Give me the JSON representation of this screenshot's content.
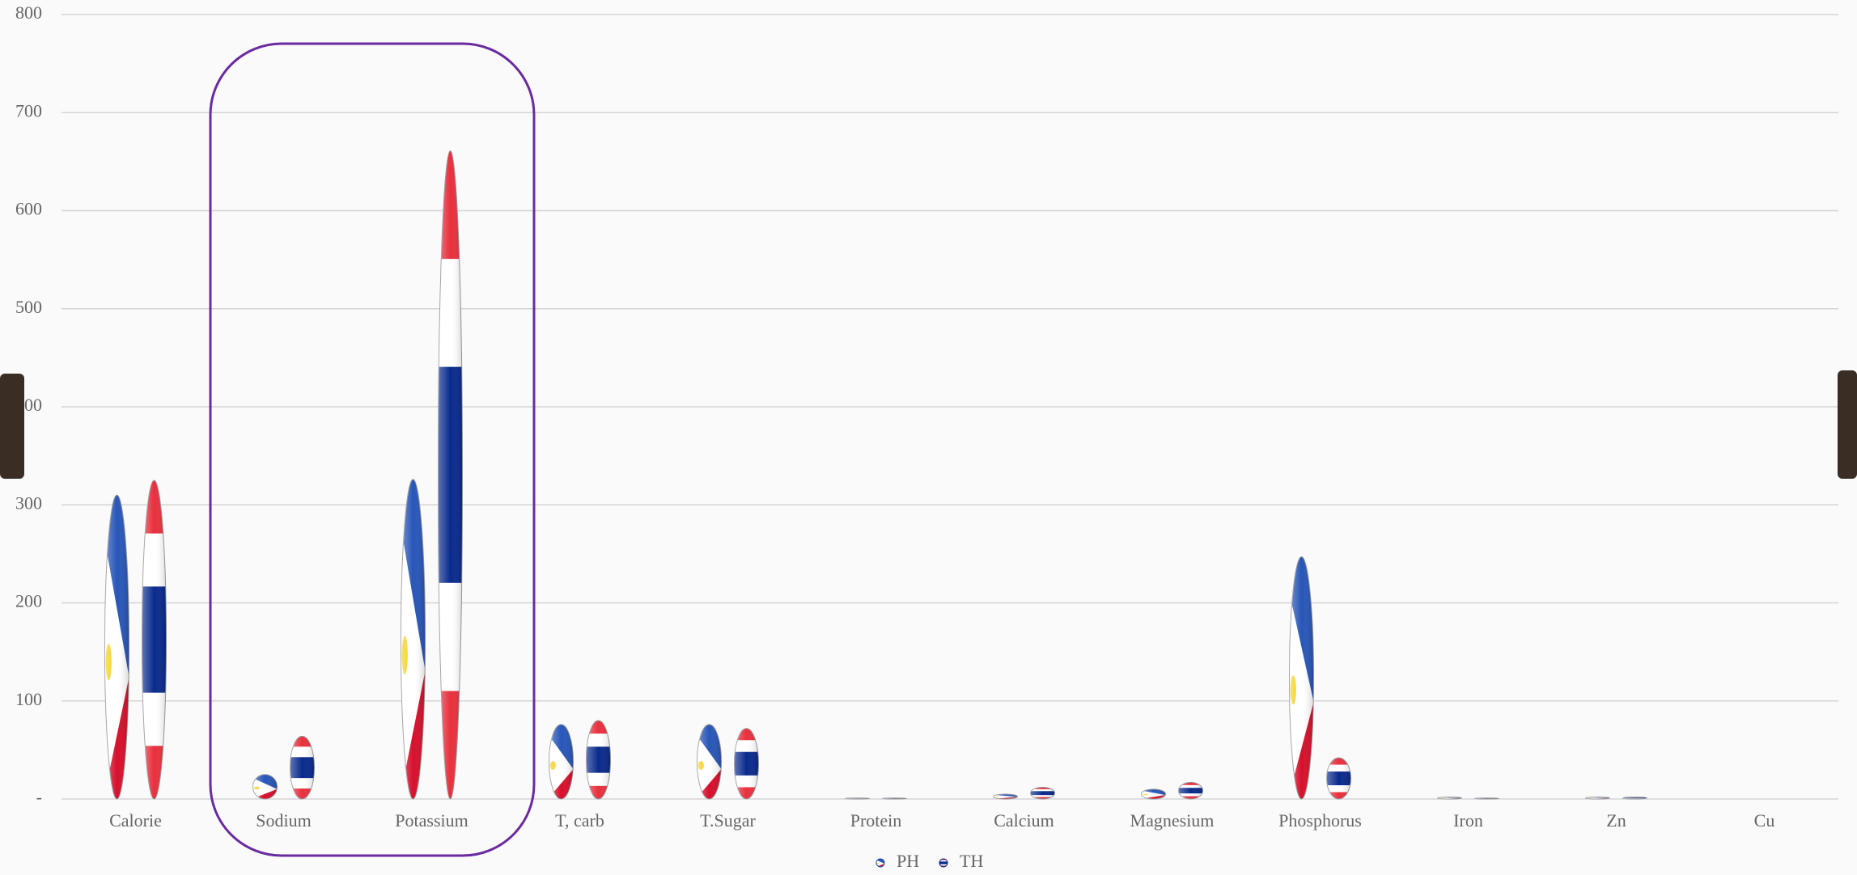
{
  "chart_data": {
    "type": "bar",
    "categories": [
      "Calorie",
      "Sodium",
      "Potassium",
      "T, carb",
      "T.Sugar",
      "Protein",
      "Calcium",
      "Magnesium",
      "Phosphorus",
      "Iron",
      "Zn",
      "Cu"
    ],
    "series": [
      {
        "name": "PH",
        "color": "#1f4fb0",
        "values": [
          310,
          25,
          326,
          76,
          76,
          1,
          5,
          10,
          247,
          2,
          2,
          0
        ]
      },
      {
        "name": "TH",
        "color": "#0a2a8c",
        "values": [
          325,
          64,
          661,
          80,
          72,
          1,
          12,
          17,
          42,
          1,
          2,
          0
        ]
      }
    ],
    "ylim": [
      0,
      800
    ],
    "yticks": [
      {
        "value": 0,
        "label": "-"
      },
      100,
      200,
      300,
      400,
      500,
      600,
      700,
      800
    ],
    "grid": true,
    "legend": "bottom"
  }
}
